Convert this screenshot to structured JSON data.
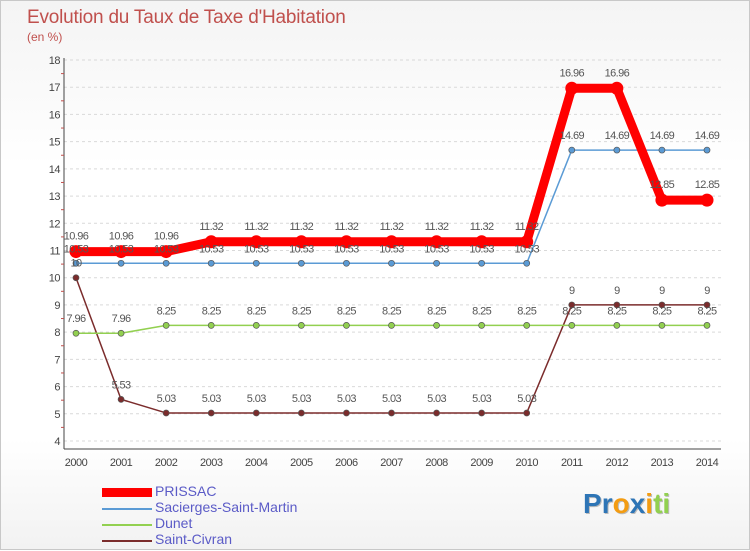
{
  "header": {
    "title": "Evolution du Taux de Taxe d'Habitation",
    "subtitle": "(en %)"
  },
  "chart_data": {
    "type": "line",
    "title": "Evolution du Taux de Taxe d'Habitation",
    "ylabel": "(en %)",
    "xlabel": "",
    "x": [
      "2000",
      "2001",
      "2002",
      "2003",
      "2004",
      "2005",
      "2006",
      "2007",
      "2008",
      "2009",
      "2010",
      "2011",
      "2012",
      "2013",
      "2014"
    ],
    "ylim": [
      4,
      18
    ],
    "yticks": [
      4,
      5,
      6,
      7,
      8,
      9,
      10,
      11,
      12,
      13,
      14,
      15,
      16,
      17,
      18
    ],
    "grid": "y-dashed",
    "legend_position": "bottom-left",
    "series": [
      {
        "name": "PRISSAC",
        "color": "#ff0000",
        "values": [
          10.96,
          10.96,
          10.96,
          11.32,
          11.32,
          11.32,
          11.32,
          11.32,
          11.32,
          11.32,
          11.32,
          16.96,
          16.96,
          12.85,
          12.85
        ],
        "labels": [
          "10.96",
          "10.96",
          "10.96",
          "11.32",
          "11.32",
          "11.32",
          "11.32",
          "11.32",
          "11.32",
          "11.32",
          "11.32",
          "16.96",
          "16.96",
          "12.85",
          "12.85"
        ]
      },
      {
        "name": "Sacierges-Saint-Martin",
        "color": "#5b9bd5",
        "values": [
          10.53,
          10.53,
          10.53,
          10.53,
          10.53,
          10.53,
          10.53,
          10.53,
          10.53,
          10.53,
          10.53,
          14.69,
          14.69,
          14.69,
          14.69
        ],
        "labels": [
          "10.53",
          "10.53",
          "10.53",
          "10.53",
          "10.53",
          "10.53",
          "10.53",
          "10.53",
          "10.53",
          "10.53",
          "10.53",
          "14.69",
          "14.69",
          "14.69",
          "14.69"
        ]
      },
      {
        "name": "Dunet",
        "color": "#92d050",
        "values": [
          7.96,
          7.96,
          8.25,
          8.25,
          8.25,
          8.25,
          8.25,
          8.25,
          8.25,
          8.25,
          8.25,
          8.25,
          8.25,
          8.25,
          8.25
        ],
        "labels": [
          "7.96",
          "7.96",
          "8.25",
          "8.25",
          "8.25",
          "8.25",
          "8.25",
          "8.25",
          "8.25",
          "8.25",
          "8.25",
          "8.25",
          "8.25",
          "8.25",
          "8.25"
        ]
      },
      {
        "name": "Saint-Civran",
        "color": "#7b2c2c",
        "values": [
          10,
          5.53,
          5.03,
          5.03,
          5.03,
          5.03,
          5.03,
          5.03,
          5.03,
          5.03,
          5.03,
          9,
          9,
          9,
          9
        ],
        "labels": [
          "10",
          "5.53",
          "5.03",
          "5.03",
          "5.03",
          "5.03",
          "5.03",
          "5.03",
          "5.03",
          "5.03",
          "5.03",
          "9",
          "9",
          "9",
          "9"
        ]
      }
    ]
  },
  "legend": {
    "items": [
      {
        "label": "PRISSAC",
        "color": "#ff0000"
      },
      {
        "label": "Sacierges-Saint-Martin",
        "color": "#5b9bd5"
      },
      {
        "label": "Dunet",
        "color": "#92d050"
      },
      {
        "label": "Saint-Civran",
        "color": "#7b2c2c"
      }
    ]
  },
  "brand": {
    "letters": [
      "P",
      "r",
      "o",
      "x",
      "i",
      "t",
      "i"
    ],
    "colors": [
      "#2e75b6",
      "#2e75b6",
      "#f39c12",
      "#2e75b6",
      "#f39c12",
      "#92d050",
      "#92d050"
    ]
  }
}
